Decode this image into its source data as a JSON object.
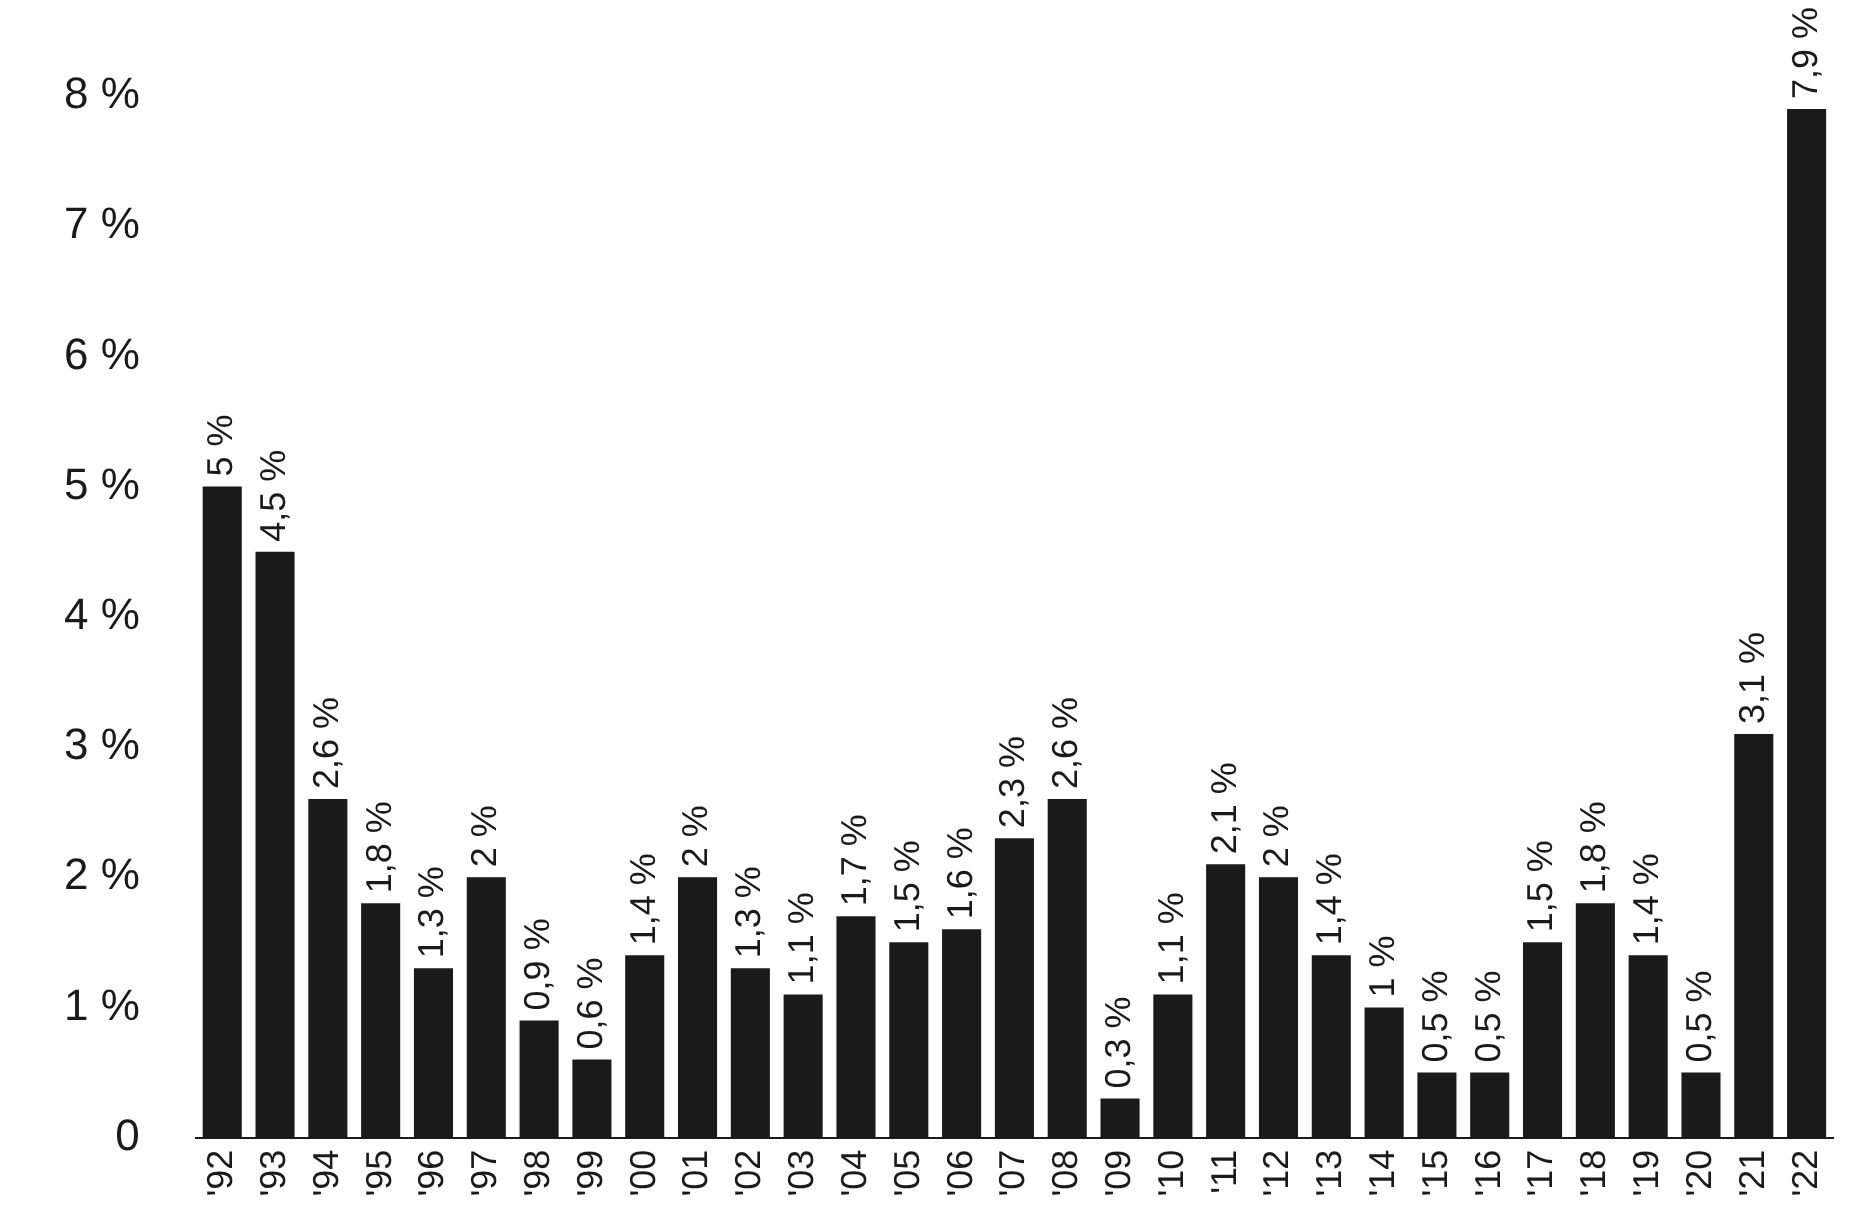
{
  "chart_data": {
    "type": "bar",
    "categories": [
      "'92",
      "'93",
      "'94",
      "'95",
      "'96",
      "'97",
      "'98",
      "'99",
      "'00",
      "'01",
      "'02",
      "'03",
      "'04",
      "'05",
      "'06",
      "'07",
      "'08",
      "'09",
      "'10",
      "'11",
      "'12",
      "'13",
      "'14",
      "'15",
      "'16",
      "'17",
      "'18",
      "'19",
      "'20",
      "'21",
      "'22"
    ],
    "values": [
      5,
      4.5,
      2.6,
      1.8,
      1.3,
      2,
      0.9,
      0.6,
      1.4,
      2,
      1.3,
      1.1,
      1.7,
      1.5,
      1.6,
      2.3,
      2.6,
      0.3,
      1.1,
      2.1,
      2,
      1.4,
      1,
      0.5,
      0.5,
      1.5,
      1.8,
      1.4,
      0.5,
      3.1,
      7.9
    ],
    "value_labels": [
      "5 %",
      "4,5 %",
      "2,6 %",
      "1,8 %",
      "1,3 %",
      "2 %",
      "0,9 %",
      "0,6 %",
      "1,4 %",
      "2 %",
      "1,3 %",
      "1,1 %",
      "1,7 %",
      "1,5 %",
      "1,6 %",
      "2,3 %",
      "2,6 %",
      "0,3 %",
      "1,1 %",
      "2,1 %",
      "2 %",
      "1,4 %",
      "1 %",
      "0,5 %",
      "0,5 %",
      "1,5 %",
      "1,8 %",
      "1,4 %",
      "0,5 %",
      "3,1 %",
      "7,9 %"
    ],
    "color": "#1a1a1a",
    "ylim": [
      0,
      8
    ],
    "yticks": [
      {
        "value": 0,
        "label": "0"
      },
      {
        "value": 1,
        "label": "1 %"
      },
      {
        "value": 2,
        "label": "2 %"
      },
      {
        "value": 3,
        "label": "3 %"
      },
      {
        "value": 4,
        "label": "4 %"
      },
      {
        "value": 5,
        "label": "5 %"
      },
      {
        "value": 6,
        "label": "6 %"
      },
      {
        "value": 7,
        "label": "7 %"
      },
      {
        "value": 8,
        "label": "8 %"
      }
    ],
    "grid": false,
    "legend": false
  }
}
